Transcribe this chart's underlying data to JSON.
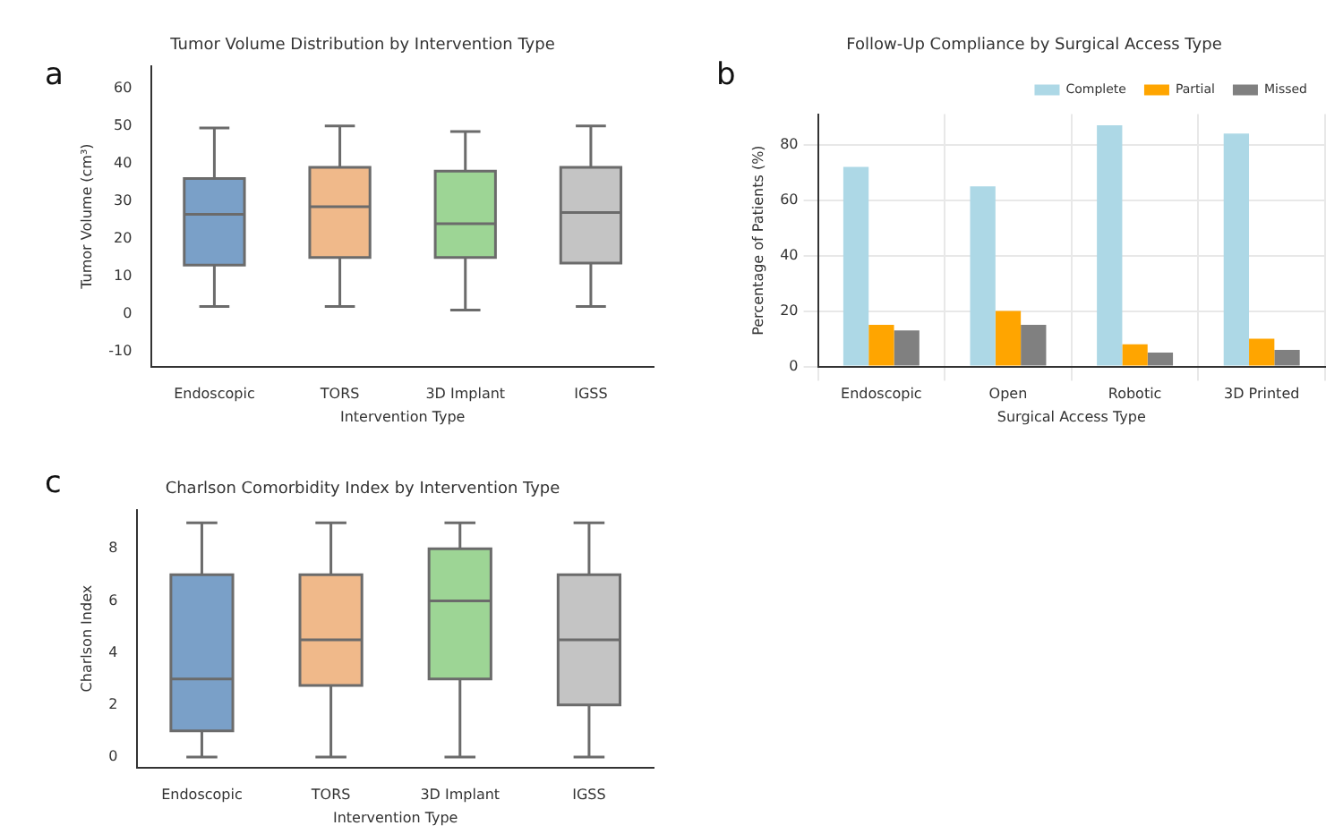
{
  "chart_data": [
    {
      "type": "box",
      "title": "Tumor Volume Distribution by Intervention Type",
      "xlabel": "Intervention Type",
      "ylabel": "Tumor Volume (cm³)",
      "annotations": [
        "a"
      ],
      "categories": [
        "Endoscopic",
        "TORS",
        "3D Implant",
        "IGSS"
      ],
      "colors": [
        "#7aa0c8",
        "#f0b98a",
        "#9dd595",
        "#c4c4c4"
      ],
      "boxes": [
        {
          "low": 2,
          "q1": 13,
          "median": 26.5,
          "q3": 36,
          "high": 49.5
        },
        {
          "low": 2,
          "q1": 15,
          "median": 28.5,
          "q3": 39,
          "high": 50
        },
        {
          "low": 1,
          "q1": 15,
          "median": 24,
          "q3": 38,
          "high": 48.5
        },
        {
          "low": 2,
          "q1": 13.5,
          "median": 27,
          "q3": 39,
          "high": 50
        }
      ],
      "ylim": [
        -14,
        66
      ],
      "yticks": [
        -10,
        0,
        10,
        20,
        30,
        40,
        50,
        60
      ],
      "grid": false,
      "legend": false
    },
    {
      "type": "bar",
      "title": "Follow-Up Compliance by Surgical Access Type",
      "xlabel": "Surgical Access Type",
      "ylabel": "Percentage of Patients (%)",
      "annotations": [
        "b"
      ],
      "categories": [
        "Endoscopic",
        "Open",
        "Robotic",
        "3D Printed"
      ],
      "series": [
        {
          "name": "Complete",
          "color": "#add8e6",
          "values": [
            72,
            65,
            87,
            84
          ]
        },
        {
          "name": "Partial",
          "color": "#ffa500",
          "values": [
            15,
            20,
            8,
            10
          ]
        },
        {
          "name": "Missed",
          "color": "#808080",
          "values": [
            13,
            15,
            5,
            6
          ]
        }
      ],
      "ylim": [
        0,
        91
      ],
      "yticks": [
        0,
        20,
        40,
        60,
        80
      ],
      "grid": true,
      "legend": "top right"
    },
    {
      "type": "box",
      "title": "Charlson Comorbidity Index by Intervention Type",
      "xlabel": "Intervention Type",
      "ylabel": "Charlson Index",
      "annotations": [
        "c"
      ],
      "categories": [
        "Endoscopic",
        "TORS",
        "3D Implant",
        "IGSS"
      ],
      "colors": [
        "#7aa0c8",
        "#f0b98a",
        "#9dd595",
        "#c4c4c4"
      ],
      "boxes": [
        {
          "low": 0,
          "q1": 1,
          "median": 3,
          "q3": 7,
          "high": 9
        },
        {
          "low": 0,
          "q1": 2.75,
          "median": 4.5,
          "q3": 7,
          "high": 9
        },
        {
          "low": 0,
          "q1": 3,
          "median": 6,
          "q3": 8,
          "high": 9
        },
        {
          "low": 0,
          "q1": 2,
          "median": 4.5,
          "q3": 7,
          "high": 9
        }
      ],
      "ylim": [
        -0.4,
        9.5
      ],
      "yticks": [
        0,
        2,
        4,
        6,
        8
      ],
      "grid": false,
      "legend": false
    }
  ]
}
